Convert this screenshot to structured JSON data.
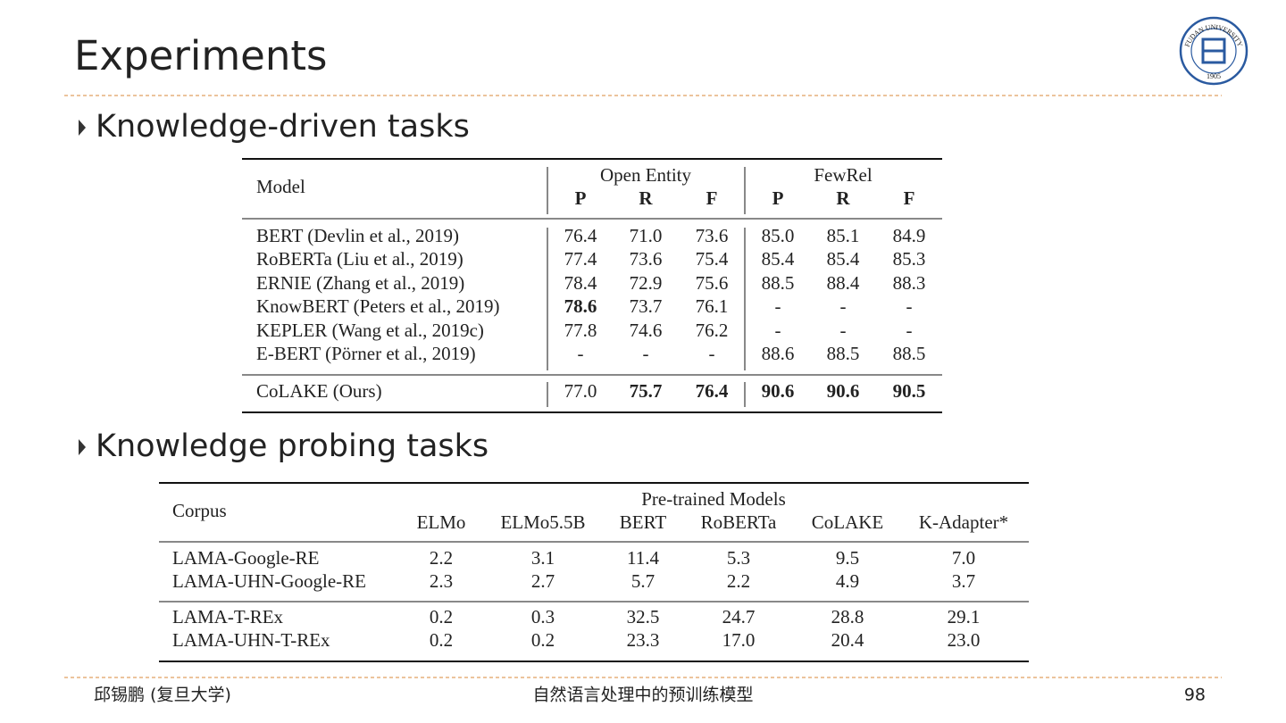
{
  "title": "Experiments",
  "logo": {
    "text": "FUDAN UNIVERSITY",
    "year": "1905"
  },
  "sections": [
    {
      "heading": "Knowledge-driven tasks",
      "table": {
        "model_header": "Model",
        "groups": [
          {
            "name": "Open Entity",
            "columns": [
              "P",
              "R",
              "F"
            ]
          },
          {
            "name": "FewRel",
            "columns": [
              "P",
              "R",
              "F"
            ]
          }
        ],
        "row_groups": [
          [
            [
              "BERT (Devlin et al., 2019)",
              "76.4",
              "71.0",
              "73.6",
              "85.0",
              "85.1",
              "84.9"
            ],
            [
              "RoBERTa (Liu et al., 2019)",
              "77.4",
              "73.6",
              "75.4",
              "85.4",
              "85.4",
              "85.3"
            ],
            [
              "ERNIE (Zhang et al., 2019)",
              "78.4",
              "72.9",
              "75.6",
              "88.5",
              "88.4",
              "88.3"
            ],
            [
              "KnowBERT (Peters et al., 2019)",
              {
                "text": "78.6",
                "bold": true
              },
              "73.7",
              "76.1",
              "-",
              "-",
              "-"
            ],
            [
              "KEPLER (Wang et al., 2019c)",
              "77.8",
              "74.6",
              "76.2",
              "-",
              "-",
              "-"
            ],
            [
              "E-BERT (Pörner et al., 2019)",
              "-",
              "-",
              "-",
              "88.6",
              "88.5",
              "88.5"
            ]
          ],
          [
            [
              "CoLAKE (Ours)",
              "77.0",
              {
                "text": "75.7",
                "bold": true
              },
              {
                "text": "76.4",
                "bold": true
              },
              {
                "text": "90.6",
                "bold": true
              },
              {
                "text": "90.6",
                "bold": true
              },
              {
                "text": "90.5",
                "bold": true
              }
            ]
          ]
        ]
      }
    },
    {
      "heading": "Knowledge probing tasks",
      "table": {
        "corpus_header": "Corpus",
        "group_header": "Pre-trained Models",
        "columns": [
          "ELMo",
          "ELMo5.5B",
          "BERT",
          "RoBERTa",
          "CoLAKE",
          "K-Adapter*"
        ],
        "row_groups": [
          [
            [
              "LAMA-Google-RE",
              "2.2",
              "3.1",
              "11.4",
              "5.3",
              "9.5",
              "7.0"
            ],
            [
              "LAMA-UHN-Google-RE",
              "2.3",
              "2.7",
              "5.7",
              "2.2",
              "4.9",
              "3.7"
            ]
          ],
          [
            [
              "LAMA-T-REx",
              "0.2",
              "0.3",
              "32.5",
              "24.7",
              "28.8",
              "29.1"
            ],
            [
              "LAMA-UHN-T-REx",
              "0.2",
              "0.2",
              "23.3",
              "17.0",
              "20.4",
              "23.0"
            ]
          ]
        ]
      }
    }
  ],
  "footer": {
    "left": "邱锡鹏 (复旦大学)",
    "center": "自然语言处理中的预训练模型",
    "right": "98"
  }
}
